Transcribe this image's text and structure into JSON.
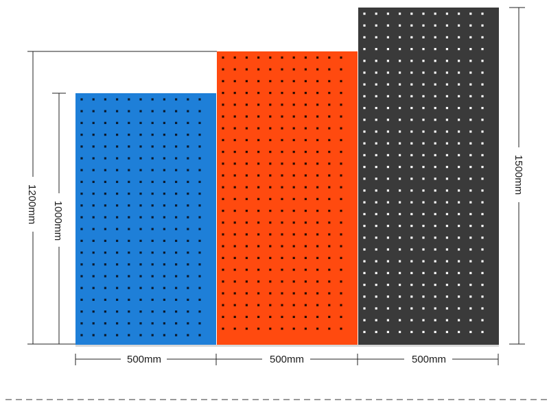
{
  "dimensions": {
    "width_labels": [
      "500mm",
      "500mm",
      "500mm"
    ],
    "height_labels": {
      "blue": "1000mm",
      "red": "1200mm",
      "black": "1500mm"
    }
  },
  "panels": [
    {
      "id": "blue",
      "color": "#1e7fd8",
      "hole_color": "#0b1b2e"
    },
    {
      "id": "red",
      "color": "#ff4a0f",
      "hole_color": "#2a0a00"
    },
    {
      "id": "black",
      "color": "#3a3a3a",
      "hole_color": "#ffffff"
    }
  ]
}
